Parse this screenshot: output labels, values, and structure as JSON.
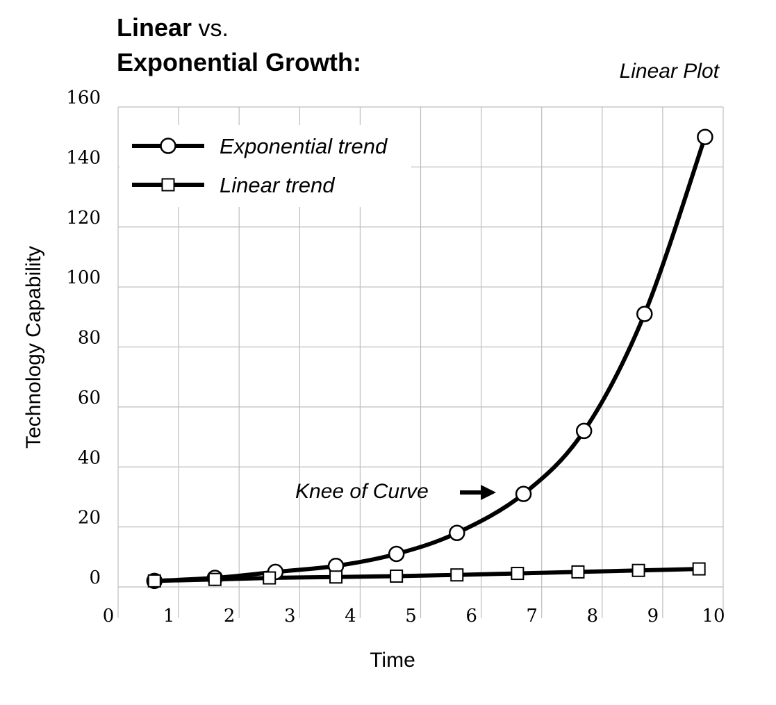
{
  "title": {
    "bold1": "Linear",
    "reg1": " vs.",
    "bold2": "Exponential Growth:"
  },
  "plot_label": "Linear Plot",
  "annotation": "Knee of Curve",
  "chart_data": {
    "type": "line",
    "xlabel": "Time",
    "ylabel": "Technology Capability",
    "xlim": [
      0,
      10
    ],
    "ylim": [
      0,
      160
    ],
    "x_ticks": [
      "0",
      "1",
      "2",
      "3",
      "4",
      "5",
      "6",
      "7",
      "8",
      "9",
      "10"
    ],
    "y_ticks": [
      "0",
      "20",
      "40",
      "60",
      "80",
      "100",
      "120",
      "140",
      "160"
    ],
    "grid": true,
    "legend_position": "top-left",
    "series": [
      {
        "name": "Exponential trend",
        "marker": "circle",
        "x": [
          0.6,
          1.6,
          2.6,
          3.6,
          4.6,
          5.6,
          6.7,
          7.7,
          8.7,
          9.7
        ],
        "y": [
          2,
          3,
          5,
          7,
          11,
          18,
          31,
          52,
          91,
          150
        ]
      },
      {
        "name": "Linear trend",
        "marker": "square",
        "x": [
          0.6,
          1.6,
          2.5,
          3.6,
          4.6,
          5.6,
          6.6,
          7.6,
          8.6,
          9.6
        ],
        "y": [
          2,
          2.5,
          3,
          3.3,
          3.6,
          4,
          4.5,
          5,
          5.5,
          6
        ]
      }
    ]
  }
}
